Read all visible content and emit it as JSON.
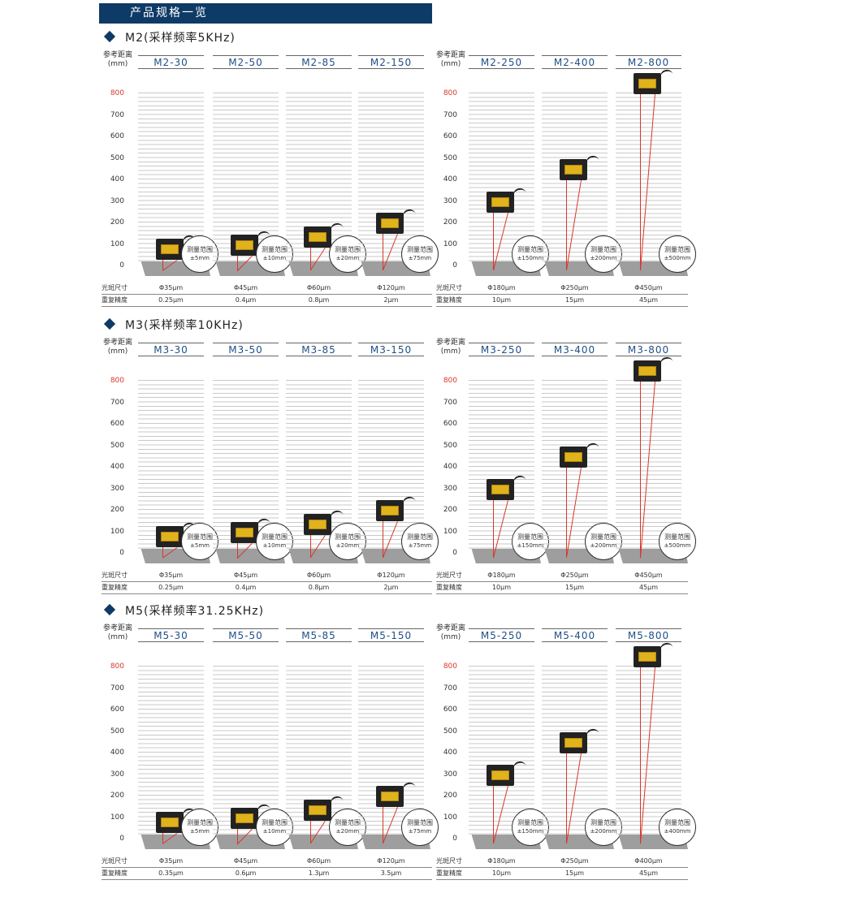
{
  "banner_title": "产品规格一览",
  "ref_label": "参考距离",
  "ref_unit": "(mm)",
  "range_label": "测量范围",
  "row_labels": {
    "spot": "光斑尺寸",
    "repeat": "重复精度"
  },
  "y_ticks": [
    0,
    100,
    200,
    300,
    400,
    500,
    600,
    700,
    800
  ],
  "colors": {
    "banner": "#0e3a66",
    "model_text": "#1f4f86",
    "laser": "#d9362a",
    "tick_800": "#d9362a"
  },
  "sections": [
    {
      "title": "M2(采样频率5KHz)",
      "models": [
        {
          "name": "M2-30",
          "ref": 30,
          "range": "±5mm",
          "spot": "Φ35μm",
          "repeat": "0.25μm"
        },
        {
          "name": "M2-50",
          "ref": 50,
          "range": "±10mm",
          "spot": "Φ45μm",
          "repeat": "0.4μm"
        },
        {
          "name": "M2-85",
          "ref": 85,
          "range": "±20mm",
          "spot": "Φ60μm",
          "repeat": "0.8μm"
        },
        {
          "name": "M2-150",
          "ref": 150,
          "range": "±75mm",
          "spot": "Φ120μm",
          "repeat": "2μm"
        },
        {
          "name": "M2-250",
          "ref": 250,
          "range": "±150mm",
          "spot": "Φ180μm",
          "repeat": "10μm"
        },
        {
          "name": "M2-400",
          "ref": 400,
          "range": "±200mm",
          "spot": "Φ250μm",
          "repeat": "15μm"
        },
        {
          "name": "M2-800",
          "ref": 800,
          "range": "±500mm",
          "spot": "Φ450μm",
          "repeat": "45μm"
        }
      ]
    },
    {
      "title": "M3(采样频率10KHz)",
      "models": [
        {
          "name": "M3-30",
          "ref": 30,
          "range": "±5mm",
          "spot": "Φ35μm",
          "repeat": "0.25μm"
        },
        {
          "name": "M3-50",
          "ref": 50,
          "range": "±10mm",
          "spot": "Φ45μm",
          "repeat": "0.4μm"
        },
        {
          "name": "M3-85",
          "ref": 85,
          "range": "±20mm",
          "spot": "Φ60μm",
          "repeat": "0.8μm"
        },
        {
          "name": "M3-150",
          "ref": 150,
          "range": "±75mm",
          "spot": "Φ120μm",
          "repeat": "2μm"
        },
        {
          "name": "M3-250",
          "ref": 250,
          "range": "±150mm",
          "spot": "Φ180μm",
          "repeat": "10μm"
        },
        {
          "name": "M3-400",
          "ref": 400,
          "range": "±200mm",
          "spot": "Φ250μm",
          "repeat": "15μm"
        },
        {
          "name": "M3-800",
          "ref": 800,
          "range": "±500mm",
          "spot": "Φ450μm",
          "repeat": "45μm"
        }
      ]
    },
    {
      "title": "M5(采样频率31.25KHz)",
      "models": [
        {
          "name": "M5-30",
          "ref": 30,
          "range": "±5mm",
          "spot": "Φ35μm",
          "repeat": "0.35μm"
        },
        {
          "name": "M5-50",
          "ref": 50,
          "range": "±10mm",
          "spot": "Φ45μm",
          "repeat": "0.6μm"
        },
        {
          "name": "M5-85",
          "ref": 85,
          "range": "±20mm",
          "spot": "Φ60μm",
          "repeat": "1.3μm"
        },
        {
          "name": "M5-150",
          "ref": 150,
          "range": "±75mm",
          "spot": "Φ120μm",
          "repeat": "3.5μm"
        },
        {
          "name": "M5-250",
          "ref": 250,
          "range": "±150mm",
          "spot": "Φ180μm",
          "repeat": "10μm"
        },
        {
          "name": "M5-400",
          "ref": 400,
          "range": "±200mm",
          "spot": "Φ250μm",
          "repeat": "15μm"
        },
        {
          "name": "M5-800",
          "ref": 800,
          "range": "±400mm",
          "spot": "Φ400μm",
          "repeat": "45μm"
        }
      ]
    }
  ]
}
